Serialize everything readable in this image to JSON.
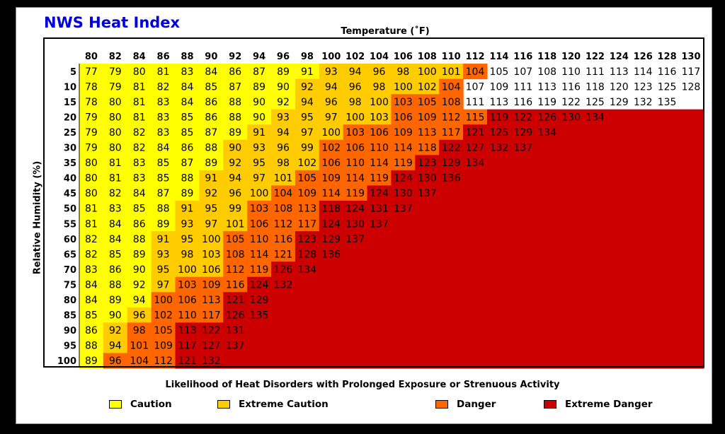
{
  "colors": {
    "caution": "#ffff00",
    "extreme_caution": "#ffcc00",
    "danger": "#ff6600",
    "extreme_danger": "#cc0000"
  },
  "chart_data": {
    "type": "table",
    "title": "NWS Heat Index",
    "xlabel": "Temperature (˚F)",
    "ylabel": "Relative Humidity (%)",
    "footnote": "Likelihood of Heat Disorders with Prolonged Exposure or Strenuous Activity",
    "legend": [
      {
        "key": "caution",
        "label": "Caution"
      },
      {
        "key": "extreme_caution",
        "label": "Extreme Caution"
      },
      {
        "key": "danger",
        "label": "Danger"
      },
      {
        "key": "extreme_danger",
        "label": "Extreme Danger"
      }
    ],
    "temperatures": [
      80,
      82,
      84,
      86,
      88,
      90,
      92,
      94,
      96,
      98,
      100,
      102,
      104,
      106,
      108,
      110,
      112,
      114,
      116,
      118,
      120,
      122,
      124,
      126,
      128,
      130
    ],
    "humidities": [
      5,
      10,
      15,
      20,
      25,
      30,
      35,
      40,
      45,
      50,
      55,
      60,
      65,
      70,
      75,
      80,
      85,
      90,
      95,
      100
    ],
    "values": [
      [
        77,
        79,
        80,
        81,
        83,
        84,
        86,
        87,
        89,
        91,
        93,
        94,
        96,
        98,
        100,
        101,
        104,
        105,
        107,
        108,
        110,
        111,
        113,
        114,
        116,
        117
      ],
      [
        78,
        79,
        81,
        82,
        84,
        85,
        87,
        89,
        90,
        92,
        94,
        96,
        98,
        100,
        102,
        104,
        107,
        109,
        111,
        113,
        116,
        118,
        120,
        123,
        125,
        128
      ],
      [
        78,
        80,
        81,
        83,
        84,
        86,
        88,
        90,
        92,
        94,
        96,
        98,
        100,
        103,
        105,
        108,
        111,
        113,
        116,
        119,
        122,
        125,
        129,
        132,
        135
      ],
      [
        79,
        80,
        81,
        83,
        85,
        86,
        88,
        90,
        93,
        95,
        97,
        100,
        103,
        106,
        109,
        112,
        115,
        119,
        122,
        126,
        130,
        134
      ],
      [
        79,
        80,
        82,
        83,
        85,
        87,
        89,
        91,
        94,
        97,
        100,
        103,
        106,
        109,
        113,
        117,
        121,
        125,
        129,
        134
      ],
      [
        79,
        80,
        82,
        84,
        86,
        88,
        90,
        93,
        96,
        99,
        102,
        106,
        110,
        114,
        118,
        122,
        127,
        132,
        137
      ],
      [
        80,
        81,
        83,
        85,
        87,
        89,
        92,
        95,
        98,
        102,
        106,
        110,
        114,
        119,
        123,
        129,
        134
      ],
      [
        80,
        81,
        83,
        85,
        88,
        91,
        94,
        97,
        101,
        105,
        109,
        114,
        119,
        124,
        130,
        136
      ],
      [
        80,
        82,
        84,
        87,
        89,
        92,
        96,
        100,
        104,
        109,
        114,
        119,
        124,
        130,
        137
      ],
      [
        81,
        83,
        85,
        88,
        91,
        95,
        99,
        103,
        108,
        113,
        118,
        124,
        131,
        137
      ],
      [
        81,
        84,
        86,
        89,
        93,
        97,
        101,
        106,
        112,
        117,
        124,
        130,
        137
      ],
      [
        82,
        84,
        88,
        91,
        95,
        100,
        105,
        110,
        116,
        123,
        129,
        137
      ],
      [
        82,
        85,
        89,
        93,
        98,
        103,
        108,
        114,
        121,
        128,
        136
      ],
      [
        83,
        86,
        90,
        95,
        100,
        106,
        112,
        119,
        126,
        134
      ],
      [
        84,
        88,
        92,
        97,
        103,
        109,
        116,
        124,
        132
      ],
      [
        84,
        89,
        94,
        100,
        106,
        113,
        121,
        129
      ],
      [
        85,
        90,
        96,
        102,
        110,
        117,
        126,
        135
      ],
      [
        86,
        92,
        98,
        105,
        113,
        122,
        131
      ],
      [
        88,
        94,
        101,
        109,
        117,
        127,
        137
      ],
      [
        89,
        96,
        104,
        112,
        121,
        132
      ]
    ],
    "categories_by_row": [
      "YYYYYYYYYYOOOOOOD",
      "YYYYYYYYYOOOOOOD",
      "YYYYYYYYYOOOODDD",
      "YYYYYYYYOOOOODDDDE",
      "YYYYYYYOOOODDDDDE",
      "YYYYYYOOOODDDDDE",
      "YYYYYYOOOODDDDE",
      "YYYYYOOOODDDDE",
      "YYYYYOOODDDDE",
      "YYYYOOODDDE",
      "YYYYOOODDDE",
      "YYYOOODDDE",
      "YYYOOODDDE",
      "YYYOOODDE",
      "YYYODDDE",
      "YYYDDDE",
      "YYODDDE",
      "YODDE",
      "YODDE",
      "YDDDE"
    ]
  }
}
